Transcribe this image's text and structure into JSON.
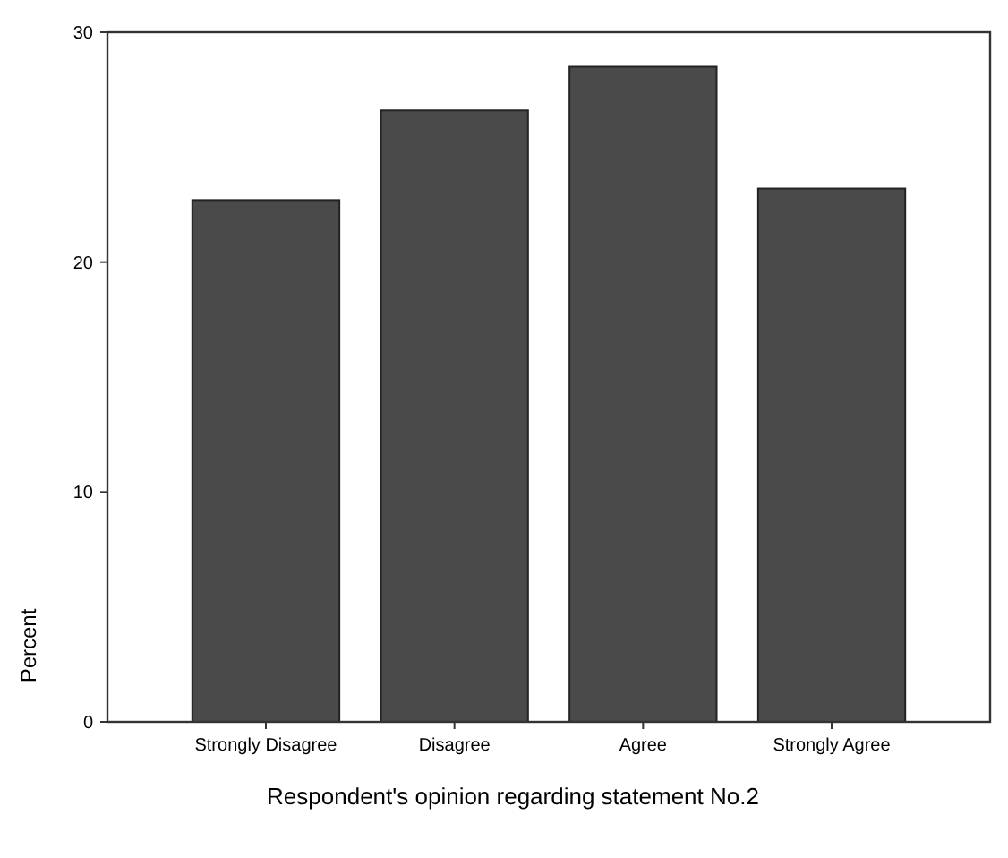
{
  "chart_data": {
    "type": "bar",
    "xlabel": "Respondent's opinion regarding statement No.2",
    "ylabel": "Percent",
    "categories": [
      "Strongly Disagree",
      "Disagree",
      "Agree",
      "Strongly Agree"
    ],
    "values": [
      22.7,
      26.6,
      28.5,
      23.2
    ],
    "color": "#4a4a4a",
    "ylim": [
      0,
      30
    ],
    "yticks": [
      0,
      10,
      20,
      30
    ],
    "grid": false
  }
}
